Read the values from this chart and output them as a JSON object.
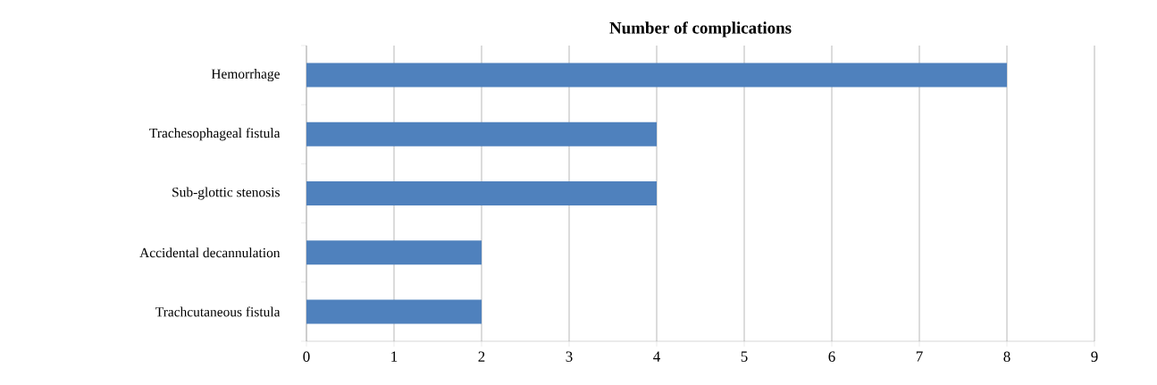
{
  "chart_data": {
    "type": "bar",
    "orientation": "horizontal",
    "title": "Number of complications",
    "categories": [
      "Hemorrhage",
      "Trachesophageal fistula",
      "Sub-glottic stenosis",
      "Accidental decannulation",
      "Trachcutaneous fistula"
    ],
    "values": [
      8,
      4,
      4,
      2,
      2
    ],
    "color": "#4f81bd",
    "xlim": [
      0,
      9
    ],
    "xticks": [
      0,
      1,
      2,
      3,
      4,
      5,
      6,
      7,
      8,
      9
    ],
    "grid": "x"
  }
}
